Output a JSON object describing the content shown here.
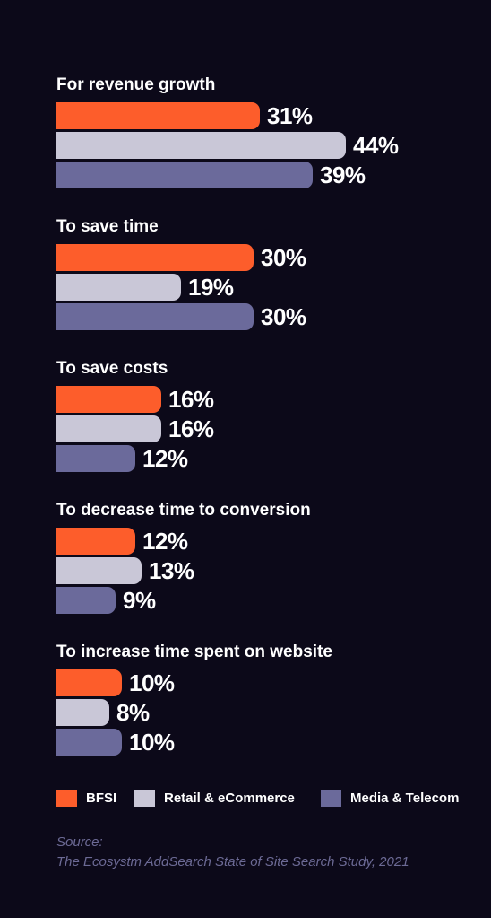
{
  "chart_data": {
    "type": "bar",
    "orientation": "horizontal",
    "categories": [
      "For revenue growth",
      "To save time",
      "To save costs",
      "To decrease time to conversion",
      "To increase time spent on website"
    ],
    "series": [
      {
        "name": "BFSI",
        "color": "#fd5d2b",
        "values": [
          31,
          30,
          16,
          12,
          10
        ],
        "labels": [
          "31%",
          "30%",
          "16%",
          "12%",
          "10%"
        ]
      },
      {
        "name": "Retail & eCommerce",
        "color": "#c9c7d7",
        "values": [
          44,
          19,
          16,
          13,
          8
        ],
        "labels": [
          "44%",
          "19%",
          "16%",
          "13%",
          "8%"
        ]
      },
      {
        "name": "Media & Telecom",
        "color": "#6b6a9b",
        "values": [
          39,
          30,
          12,
          9,
          10
        ],
        "labels": [
          "39%",
          "30%",
          "12%",
          "9%",
          "10%"
        ]
      }
    ],
    "unit": "%",
    "legend": "bottom"
  },
  "source": {
    "label": "Source:",
    "text": "The Ecosystm AddSearch State of Site Search Study, 2021"
  },
  "colors": {
    "background": "#0c0919",
    "text": "#ffffff",
    "source_text": "#6c6a95"
  }
}
